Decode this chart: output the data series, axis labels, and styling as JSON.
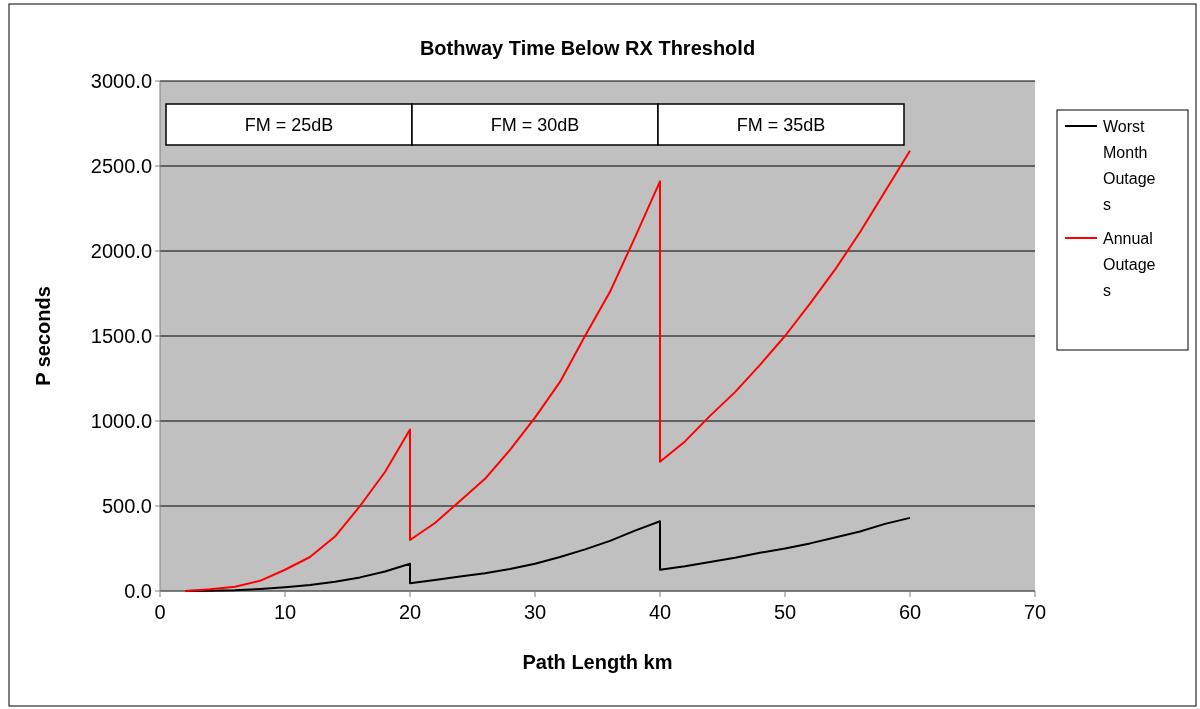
{
  "chart_data": {
    "type": "line",
    "title": "Bothway Time Below RX Threshold",
    "xlabel": "Path Length km",
    "ylabel": "P seconds",
    "xlim": [
      0,
      70
    ],
    "xticks": [
      0,
      10,
      20,
      30,
      40,
      50,
      60,
      70
    ],
    "ylim": [
      0,
      3000
    ],
    "yticks": [
      {
        "value": 0,
        "label": "0.0"
      },
      {
        "value": 500,
        "label": "500.0"
      },
      {
        "value": 1000,
        "label": "1000.0"
      },
      {
        "value": 1500,
        "label": "1500.0"
      },
      {
        "value": 2000,
        "label": "2000.0"
      },
      {
        "value": 2500,
        "label": "2500.0"
      },
      {
        "value": 3000,
        "label": "3000.0"
      }
    ],
    "grid": "y",
    "legend": "right",
    "marker": "none",
    "line_style": "solid",
    "annotations": [
      "FM = 25dB",
      "FM = 30dB",
      "FM = 35dB"
    ],
    "series": [
      {
        "name": "Worst Month Outages",
        "color": "#000000",
        "x": [
          2,
          4,
          6,
          8,
          10,
          12,
          14,
          16,
          18,
          20,
          20,
          22,
          24,
          26,
          28,
          30,
          32,
          34,
          36,
          38,
          40,
          40,
          42,
          44,
          46,
          48,
          50,
          52,
          54,
          56,
          58,
          60
        ],
        "values": [
          0,
          2,
          5,
          12,
          22,
          35,
          55,
          80,
          115,
          160,
          45,
          65,
          85,
          105,
          130,
          160,
          200,
          245,
          295,
          355,
          410,
          125,
          145,
          170,
          195,
          225,
          250,
          280,
          315,
          350,
          395,
          430
        ]
      },
      {
        "name": "Annual Outages",
        "color": "#ff0000",
        "x": [
          2,
          4,
          6,
          8,
          10,
          12,
          14,
          16,
          18,
          20,
          20,
          22,
          24,
          26,
          28,
          30,
          32,
          34,
          36,
          38,
          40,
          40,
          42,
          44,
          46,
          48,
          50,
          52,
          54,
          56,
          58,
          60
        ],
        "values": [
          0,
          10,
          25,
          60,
          125,
          200,
          320,
          500,
          700,
          950,
          300,
          400,
          530,
          660,
          830,
          1020,
          1230,
          1500,
          1760,
          2080,
          2410,
          760,
          880,
          1030,
          1170,
          1330,
          1500,
          1690,
          1890,
          2110,
          2350,
          2590
        ]
      }
    ]
  }
}
